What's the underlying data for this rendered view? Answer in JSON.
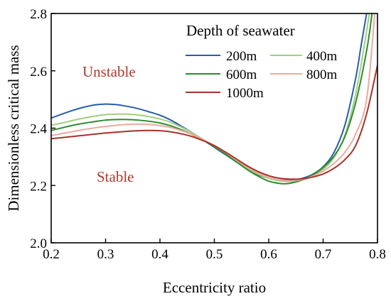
{
  "chart_data": {
    "type": "line",
    "xlabel": "Eccentricity ratio",
    "ylabel": "Dimensionless critical mass",
    "xlim": [
      0.2,
      0.8
    ],
    "ylim": [
      2.0,
      2.8
    ],
    "xticks": [
      "0.2",
      "0.3",
      "0.4",
      "0.5",
      "0.6",
      "0.7",
      "0.8"
    ],
    "yticks": [
      "2.0",
      "2.2",
      "2.4",
      "2.6",
      "2.8"
    ],
    "grid": false,
    "legend": {
      "title": "Depth of seawater",
      "placement": "top-right"
    },
    "annotations": [
      {
        "text": "Unstable",
        "x": 0.26,
        "y": 2.595
      },
      {
        "text": "Stable",
        "x": 0.26,
        "y": 2.21
      }
    ],
    "series": [
      {
        "name": "200m",
        "color": "#2a5ca8",
        "x": [
          0.2,
          0.22,
          0.24,
          0.26,
          0.28,
          0.3,
          0.32,
          0.34,
          0.36,
          0.38,
          0.4,
          0.42,
          0.44,
          0.46,
          0.48,
          0.5,
          0.52,
          0.54,
          0.56,
          0.58,
          0.6,
          0.62,
          0.64,
          0.66,
          0.68,
          0.7,
          0.72,
          0.74,
          0.76,
          0.77,
          0.78
        ],
        "y": [
          2.435,
          2.449,
          2.462,
          2.473,
          2.481,
          2.484,
          2.482,
          2.476,
          2.468,
          2.457,
          2.445,
          2.428,
          2.406,
          2.383,
          2.358,
          2.333,
          2.308,
          2.283,
          2.258,
          2.238,
          2.226,
          2.219,
          2.218,
          2.224,
          2.238,
          2.265,
          2.315,
          2.41,
          2.575,
          2.69,
          2.8
        ]
      },
      {
        "name": "400m",
        "color": "#9fcf7f",
        "x": [
          0.2,
          0.22,
          0.24,
          0.26,
          0.28,
          0.3,
          0.32,
          0.34,
          0.36,
          0.38,
          0.4,
          0.42,
          0.44,
          0.46,
          0.48,
          0.5,
          0.52,
          0.54,
          0.56,
          0.58,
          0.6,
          0.62,
          0.64,
          0.66,
          0.68,
          0.7,
          0.72,
          0.74,
          0.76,
          0.775,
          0.785
        ],
        "y": [
          2.41,
          2.418,
          2.427,
          2.435,
          2.442,
          2.447,
          2.449,
          2.449,
          2.446,
          2.44,
          2.432,
          2.42,
          2.403,
          2.383,
          2.36,
          2.336,
          2.31,
          2.284,
          2.26,
          2.24,
          2.225,
          2.216,
          2.214,
          2.218,
          2.232,
          2.256,
          2.298,
          2.375,
          2.52,
          2.68,
          2.8
        ]
      },
      {
        "name": "600m",
        "color": "#2e8b2e",
        "x": [
          0.2,
          0.22,
          0.24,
          0.26,
          0.28,
          0.3,
          0.32,
          0.34,
          0.36,
          0.38,
          0.4,
          0.42,
          0.44,
          0.46,
          0.48,
          0.5,
          0.52,
          0.54,
          0.56,
          0.58,
          0.6,
          0.62,
          0.63,
          0.64,
          0.66,
          0.68,
          0.7,
          0.72,
          0.74,
          0.76,
          0.78,
          0.79
        ],
        "y": [
          2.392,
          2.401,
          2.41,
          2.417,
          2.423,
          2.428,
          2.43,
          2.43,
          2.428,
          2.424,
          2.418,
          2.408,
          2.394,
          2.377,
          2.357,
          2.335,
          2.31,
          2.283,
          2.256,
          2.233,
          2.215,
          2.207,
          2.206,
          2.208,
          2.218,
          2.236,
          2.263,
          2.302,
          2.37,
          2.49,
          2.67,
          2.8
        ]
      },
      {
        "name": "800m",
        "color": "#f0a8a0",
        "x": [
          0.2,
          0.22,
          0.24,
          0.26,
          0.28,
          0.3,
          0.32,
          0.34,
          0.36,
          0.38,
          0.4,
          0.42,
          0.44,
          0.46,
          0.48,
          0.5,
          0.52,
          0.54,
          0.56,
          0.58,
          0.6,
          0.62,
          0.64,
          0.66,
          0.68,
          0.7,
          0.72,
          0.74,
          0.76,
          0.78,
          0.795
        ],
        "y": [
          2.374,
          2.381,
          2.388,
          2.395,
          2.401,
          2.406,
          2.41,
          2.413,
          2.414,
          2.413,
          2.409,
          2.402,
          2.391,
          2.377,
          2.359,
          2.339,
          2.316,
          2.29,
          2.265,
          2.244,
          2.228,
          2.219,
          2.216,
          2.22,
          2.232,
          2.25,
          2.277,
          2.316,
          2.38,
          2.5,
          2.8
        ]
      },
      {
        "name": "1000m",
        "color": "#a8322a",
        "x": [
          0.2,
          0.22,
          0.24,
          0.26,
          0.28,
          0.3,
          0.32,
          0.34,
          0.36,
          0.38,
          0.4,
          0.42,
          0.44,
          0.46,
          0.48,
          0.5,
          0.52,
          0.54,
          0.56,
          0.58,
          0.6,
          0.62,
          0.64,
          0.66,
          0.68,
          0.7,
          0.72,
          0.74,
          0.76,
          0.78,
          0.8
        ],
        "y": [
          2.363,
          2.367,
          2.371,
          2.375,
          2.379,
          2.383,
          2.386,
          2.389,
          2.391,
          2.392,
          2.391,
          2.387,
          2.38,
          2.37,
          2.356,
          2.339,
          2.317,
          2.293,
          2.269,
          2.249,
          2.234,
          2.225,
          2.222,
          2.223,
          2.229,
          2.24,
          2.26,
          2.29,
          2.34,
          2.45,
          2.62
        ]
      }
    ]
  }
}
